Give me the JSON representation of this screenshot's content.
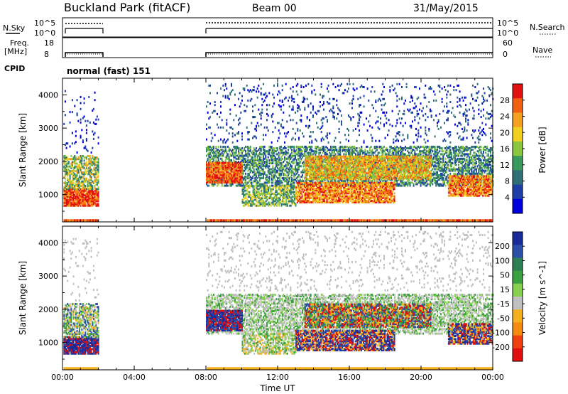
{
  "header": {
    "station": "Buckland Park (fitACF)",
    "beam": "Beam 00",
    "date": "31/May/2015"
  },
  "noise_panel": {
    "left_label": "N.Sky",
    "right_label": "N.Search",
    "left_ticks": [
      "10^5",
      "10^0"
    ],
    "right_ticks": [
      "10^5",
      "10^0"
    ]
  },
  "freq_panel": {
    "left_label_1": "Freq.",
    "left_label_2": "[MHz]",
    "right_label": "Nave",
    "left_ticks": [
      "18",
      "8"
    ],
    "right_ticks": [
      "60",
      "0"
    ]
  },
  "cpid_panel": {
    "label": "CPID",
    "mode": "normal (fast) 151"
  },
  "chart_data": [
    {
      "type": "heatmap",
      "name": "Power",
      "ylabel": "Slant Range [km]",
      "ylim": [
        180,
        4500
      ],
      "yticks": [
        "1000",
        "2000",
        "3000",
        "4000"
      ],
      "xlim_hours": [
        0,
        24
      ],
      "xticks": [
        "00:00",
        "04:00",
        "08:00",
        "12:00",
        "16:00",
        "20:00",
        "00:00"
      ],
      "data_gap_hours": [
        2.0,
        8.0
      ],
      "colorbar": {
        "label": "Power [dB]",
        "ticks": [
          "4",
          "8",
          "12",
          "16",
          "20",
          "24",
          "28"
        ],
        "colors": [
          "#0000dd",
          "#1f3fa8",
          "#2f6f78",
          "#3a9a5e",
          "#8cc63e",
          "#f0d020",
          "#f5a020",
          "#f06010",
          "#e21010"
        ]
      }
    },
    {
      "type": "heatmap",
      "name": "Velocity",
      "ylabel": "Slant Range [km]",
      "ylim": [
        180,
        4500
      ],
      "yticks": [
        "1000",
        "2000",
        "3000",
        "4000"
      ],
      "xlim_hours": [
        0,
        24
      ],
      "xticks": [
        "00:00",
        "04:00",
        "08:00",
        "12:00",
        "16:00",
        "20:00",
        "00:00"
      ],
      "xlabel": "Time UT",
      "data_gap_hours": [
        2.0,
        8.0
      ],
      "colorbar": {
        "label": "Velocity [m s^-1]",
        "ticks": [
          "200",
          "100",
          "50",
          "15",
          "-15",
          "-50",
          "-100",
          "-200"
        ],
        "colors": [
          "#1a2a9a",
          "#2b4fa8",
          "#2e7f55",
          "#3aa040",
          "#86d050",
          "#c0c0c0",
          "#f5b020",
          "#f58a10",
          "#f04010",
          "#e01010"
        ]
      }
    }
  ]
}
